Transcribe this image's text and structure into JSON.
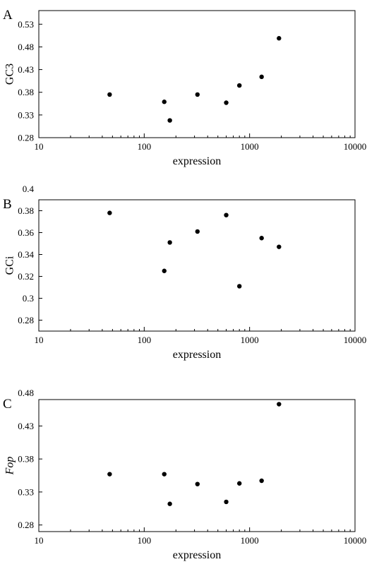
{
  "chart_data": [
    {
      "type": "scatter",
      "panel": "A",
      "xlabel": "expression",
      "ylabel": "GC3",
      "xscale": "log",
      "xlim": [
        10,
        10000
      ],
      "xticks": [
        10,
        100,
        1000,
        10000
      ],
      "xtick_labels": [
        "10",
        "100",
        "1000",
        "10000"
      ],
      "ylim": [
        0.28,
        0.56
      ],
      "yticks": [
        0.28,
        0.33,
        0.38,
        0.43,
        0.48,
        0.53
      ],
      "ytick_labels": [
        "0.28",
        "0.33",
        "0.38",
        "0.43",
        "0.48",
        "0.53"
      ],
      "grid": false,
      "x": [
        47,
        155,
        175,
        320,
        600,
        800,
        1300,
        1900
      ],
      "y": [
        0.375,
        0.359,
        0.318,
        0.375,
        0.357,
        0.395,
        0.414,
        0.499
      ]
    },
    {
      "type": "scatter",
      "panel": "B",
      "xlabel": "expression",
      "ylabel": "GCi",
      "xscale": "log",
      "xlim": [
        10,
        10000
      ],
      "xticks": [
        10,
        100,
        1000,
        10000
      ],
      "xtick_labels": [
        "10",
        "100",
        "1000",
        "10000"
      ],
      "ylim": [
        0.27,
        0.39
      ],
      "yticks": [
        0.28,
        0.3,
        0.32,
        0.34,
        0.36,
        0.38,
        0.4
      ],
      "ytick_labels": [
        "0.28",
        "0.3",
        "0.32",
        "0.34",
        "0.36",
        "0.38",
        "0.4"
      ],
      "grid": false,
      "x": [
        47,
        155,
        175,
        320,
        600,
        800,
        1300,
        1900
      ],
      "y": [
        0.378,
        0.325,
        0.351,
        0.361,
        0.376,
        0.311,
        0.355,
        0.347
      ]
    },
    {
      "type": "scatter",
      "panel": "C",
      "xlabel": "expression",
      "ylabel": "Fop",
      "xscale": "log",
      "xlim": [
        10,
        10000
      ],
      "xticks": [
        10,
        100,
        1000,
        10000
      ],
      "xtick_labels": [
        "10",
        "100",
        "1000",
        "10000"
      ],
      "ylim": [
        0.27,
        0.47
      ],
      "yticks": [
        0.28,
        0.33,
        0.38,
        0.43,
        0.48
      ],
      "ytick_labels": [
        "0.28",
        "0.33",
        "0.38",
        "0.43",
        "0.48"
      ],
      "grid": false,
      "x": [
        47,
        155,
        175,
        320,
        600,
        800,
        1300,
        1900
      ],
      "y": [
        0.357,
        0.357,
        0.312,
        0.342,
        0.315,
        0.343,
        0.347,
        0.463
      ]
    }
  ]
}
